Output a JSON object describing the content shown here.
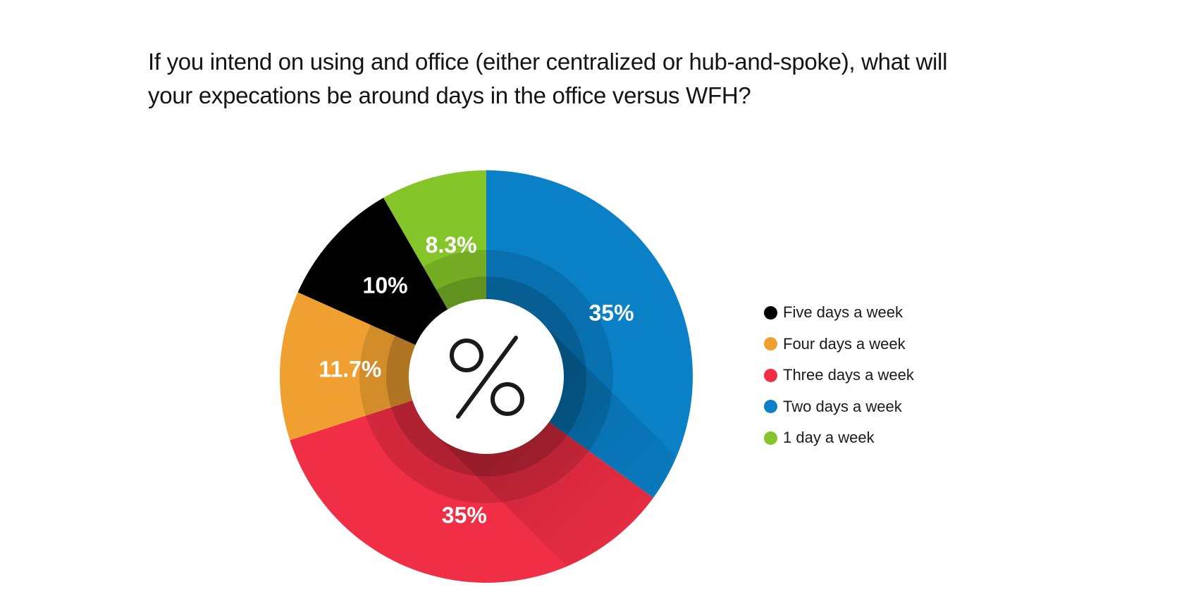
{
  "title": {
    "line1": "If you intend on using and office (either centralized or hub-and-spoke), what will",
    "line2": "your expecations be around days in the office versus WFH?"
  },
  "center_symbol": "%",
  "chart_data": {
    "type": "pie",
    "title": "If you intend on using and office (either centralized or hub-and-spoke), what will your expecations be around days in the office versus WFH?",
    "legend_position": "right",
    "slices": [
      {
        "label": "Five days a week",
        "value": 10,
        "display": "10%",
        "color": "#000000"
      },
      {
        "label": "Four days a week",
        "value": 11.7,
        "display": "11.7%",
        "color": "#F0A030"
      },
      {
        "label": "Three days a week",
        "value": 35,
        "display": "35%",
        "color": "#F02E45"
      },
      {
        "label": "Two days a week",
        "value": 35,
        "display": "35%",
        "color": "#0A80C7"
      },
      {
        "label": "1 day a week",
        "value": 8.3,
        "display": "8.3%",
        "color": "#84C52A"
      }
    ],
    "draw_order": [
      3,
      2,
      1,
      0,
      4
    ]
  }
}
